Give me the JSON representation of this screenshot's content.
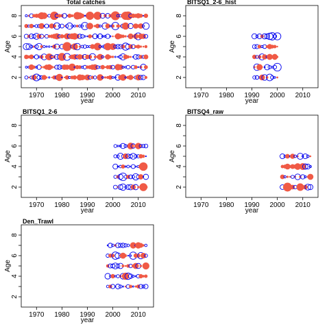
{
  "chart_data": {
    "type": "scatter",
    "encoding": "bubble residuals: filled red = positive, open blue = negative",
    "colors": {
      "positive": "#f05a46",
      "negative": "#0000ee"
    },
    "xlabel": "year",
    "ylabel": "Age",
    "xlim": [
      1964,
      2016
    ],
    "ylim": [
      1,
      9
    ],
    "xticks": [
      "1970",
      "1980",
      "1990",
      "2000",
      "2010"
    ],
    "yticks": [
      "2",
      "4",
      "6",
      "8"
    ],
    "panels": [
      {
        "title": "Total catches",
        "years": [
          1966,
          2013
        ],
        "ages": [
          2,
          3,
          4,
          5,
          6,
          7,
          8
        ],
        "seed": 11
      },
      {
        "title": "BITSQ1_2-6_hist",
        "years": [
          1991,
          2000
        ],
        "ages": [
          2,
          3,
          4,
          5,
          6
        ],
        "seed": 23
      },
      {
        "title": "BITSQ1_2-6",
        "years": [
          2001,
          2013
        ],
        "ages": [
          2,
          3,
          4,
          5,
          6
        ],
        "seed": 37
      },
      {
        "title": "BITSQ4_raw",
        "years": [
          2002,
          2013
        ],
        "ages": [
          2,
          3,
          4,
          5
        ],
        "seed": 41
      },
      {
        "title": "Den_Trawl",
        "years": [
          1998,
          2013
        ],
        "ages": [
          3,
          4,
          5,
          6,
          7
        ],
        "seed": 53
      }
    ]
  }
}
